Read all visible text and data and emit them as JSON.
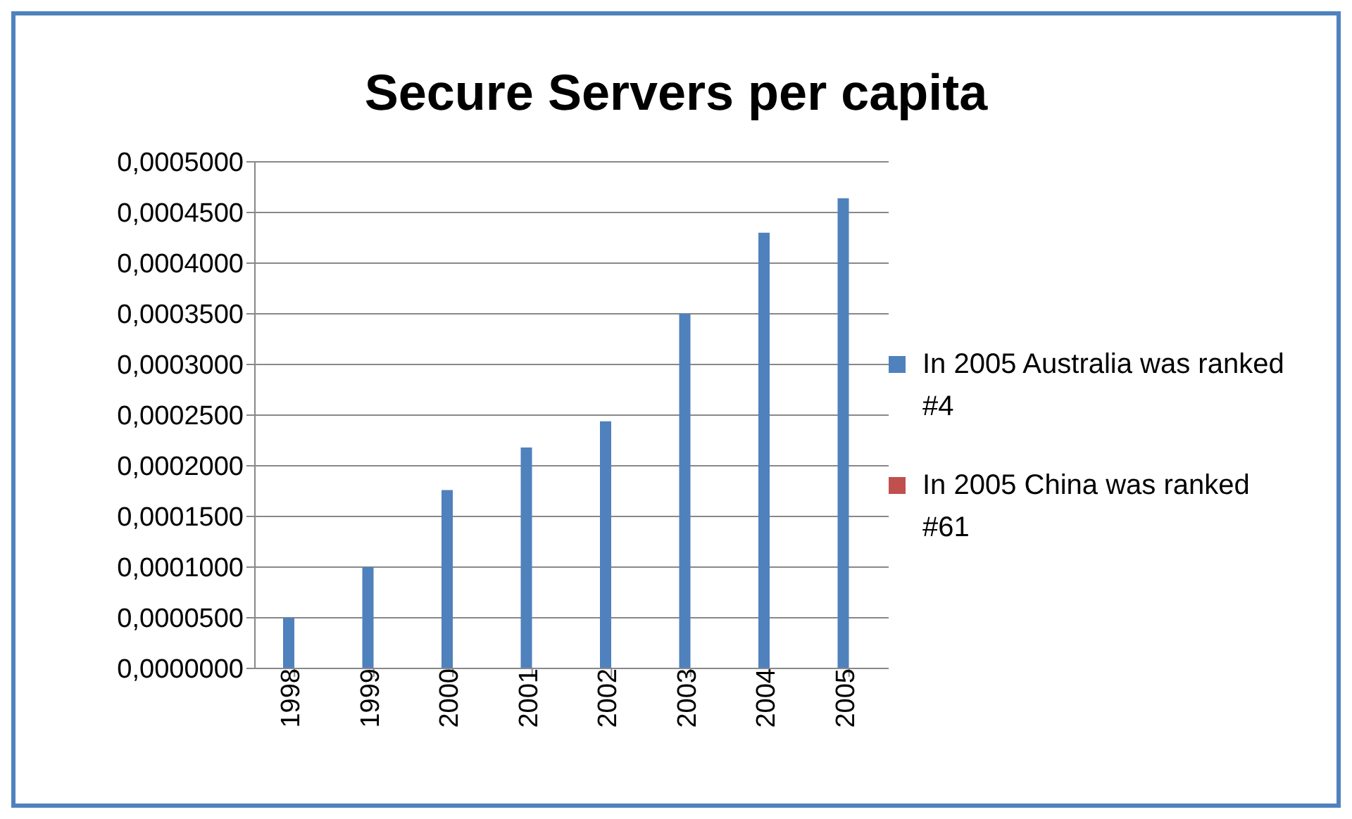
{
  "chart_data": {
    "type": "bar",
    "title": "Secure Servers per capita",
    "categories": [
      "1998",
      "1999",
      "2000",
      "2001",
      "2002",
      "2003",
      "2004",
      "2005"
    ],
    "series": [
      {
        "name": "In 2005 Australia was ranked #4",
        "color": "#4f81bd",
        "values": [
          5e-05,
          0.0001,
          0.000176,
          0.000218,
          0.000244,
          0.00035,
          0.00043,
          0.000464
        ]
      },
      {
        "name": "In 2005 China was ranked #61",
        "color": "#c0504d",
        "values": [
          0,
          0,
          0,
          0,
          0,
          0,
          0,
          0
        ]
      }
    ],
    "ylim": [
      0,
      0.0005
    ],
    "yticks": [
      {
        "value": 0,
        "label": "0,0000000"
      },
      {
        "value": 5e-05,
        "label": "0,0000500"
      },
      {
        "value": 0.0001,
        "label": "0,0001000"
      },
      {
        "value": 0.00015,
        "label": "0,0001500"
      },
      {
        "value": 0.0002,
        "label": "0,0002000"
      },
      {
        "value": 0.00025,
        "label": "0,0002500"
      },
      {
        "value": 0.0003,
        "label": "0,0003000"
      },
      {
        "value": 0.00035,
        "label": "0,0003500"
      },
      {
        "value": 0.0004,
        "label": "0,0004000"
      },
      {
        "value": 0.00045,
        "label": "0,0004500"
      },
      {
        "value": 0.0005,
        "label": "0,0005000"
      }
    ],
    "grid": "y",
    "legend": "right"
  }
}
